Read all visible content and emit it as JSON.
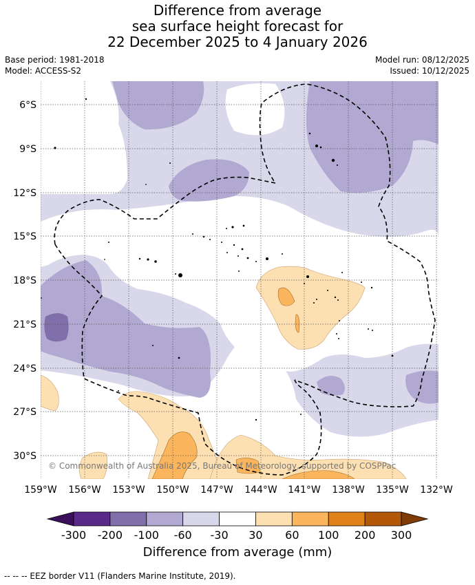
{
  "title": {
    "line1": "Difference from average",
    "line2": "sea surface height forecast for",
    "line3": "22 December 2025 to 4 January 2026"
  },
  "meta": {
    "base_period": "Base period: 1981-2018",
    "model": "Model: ACCESS-S2",
    "model_run": "Model run: 08/12/2025",
    "issued": "Issued: 10/12/2025"
  },
  "map": {
    "lat_labels": [
      "6°S",
      "9°S",
      "12°S",
      "15°S",
      "18°S",
      "21°S",
      "24°S",
      "27°S",
      "30°S"
    ],
    "lon_labels": [
      "159°W",
      "156°W",
      "153°W",
      "150°W",
      "147°W",
      "144°W",
      "141°W",
      "138°W",
      "135°W",
      "132°W"
    ],
    "copyright": "© Commonwealth of Australia 2025, Bureau of Meteorology, supported by COSPPac"
  },
  "colorbar": {
    "ticks": [
      "-300",
      "-200",
      "-100",
      "-60",
      "-30",
      "30",
      "60",
      "100",
      "200",
      "300"
    ],
    "colors": [
      "#3b0f5c",
      "#5a2a8a",
      "#7f6faa",
      "#b1a9d1",
      "#d8d8ea",
      "#ffffff",
      "#fde0b2",
      "#fbb55c",
      "#e1811a",
      "#b35806",
      "#7f3b08"
    ],
    "label": "Difference from average (mm)"
  },
  "footer": "--  --  -- EEZ border V11 (Flanders Marine Institute, 2019)."
}
